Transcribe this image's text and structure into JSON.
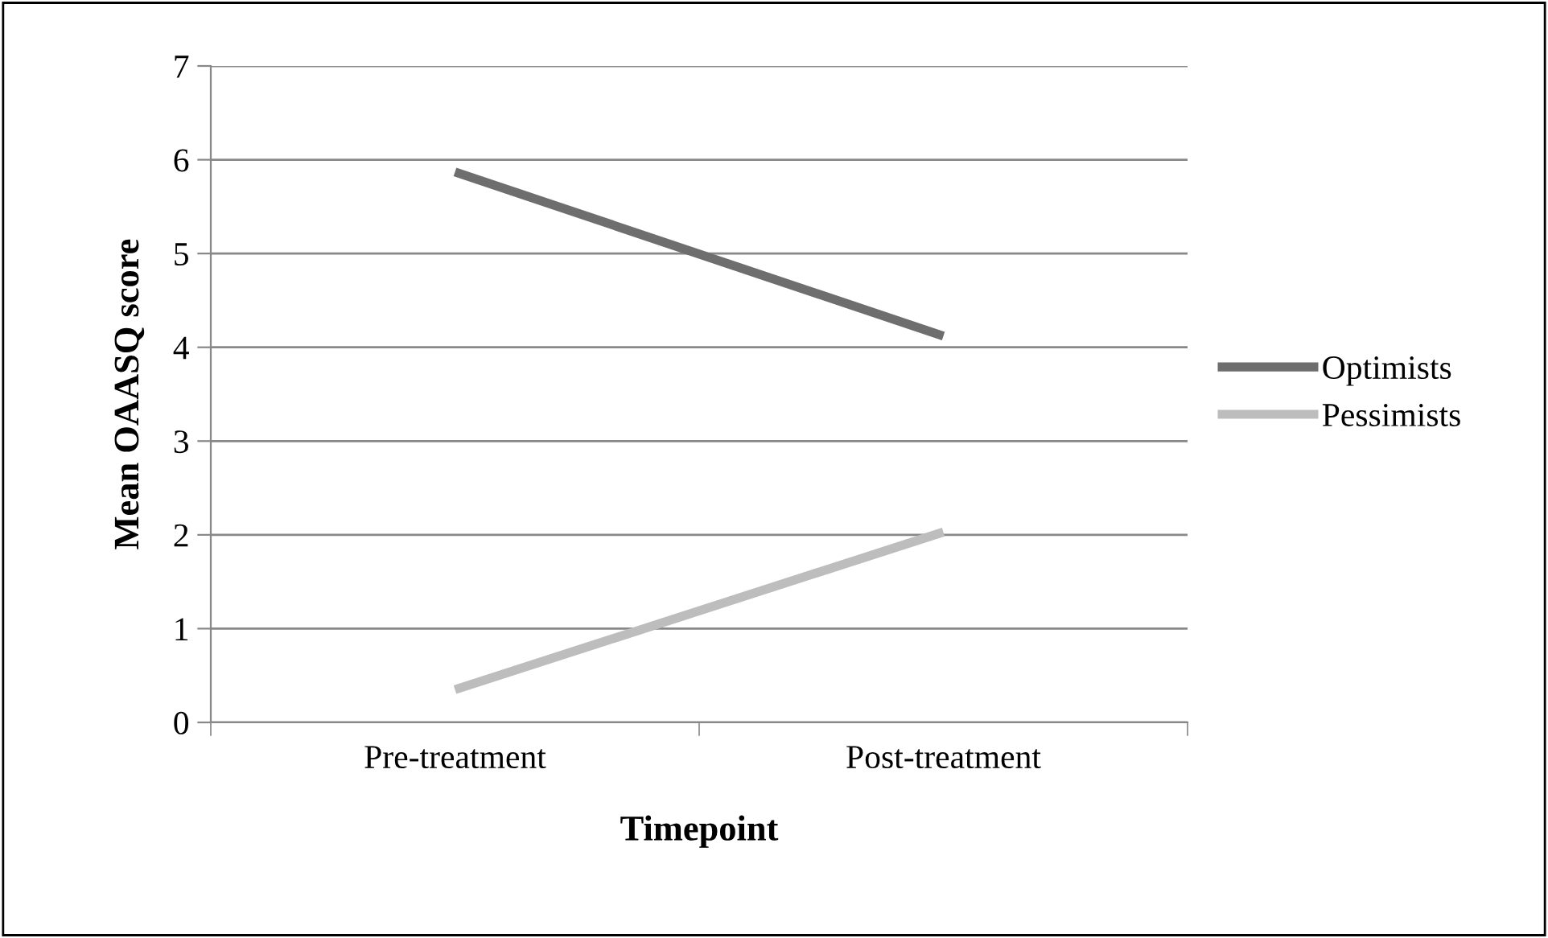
{
  "chart_data": {
    "type": "line",
    "xlabel": "Timepoint",
    "ylabel": "Mean OAASQ score",
    "categories": [
      "Pre-treatment",
      "Post-treatment"
    ],
    "series": [
      {
        "name": "Optimists",
        "color": "#6e6e6e",
        "values": [
          5.87,
          4.12
        ]
      },
      {
        "name": "Pessimists",
        "color": "#bdbdbd",
        "values": [
          0.35,
          2.03
        ]
      }
    ],
    "ylim": [
      0,
      7
    ],
    "yticks": [
      0,
      1,
      2,
      3,
      4,
      5,
      6,
      7
    ],
    "grid": "y",
    "legend": "right",
    "marker": "none",
    "line_style": "solid"
  }
}
